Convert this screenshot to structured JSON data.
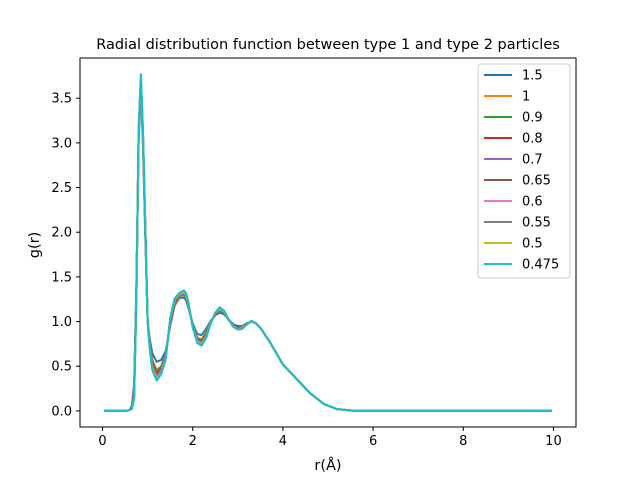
{
  "chart_data": {
    "type": "line",
    "title": "Radial distribution function between type 1 and type 2 particles",
    "xlabel": "r(Å)",
    "ylabel": "g(r)",
    "xlim": [
      -0.5,
      10.5
    ],
    "ylim": [
      -0.18,
      3.95
    ],
    "xticks": [
      0,
      2,
      4,
      6,
      8,
      10
    ],
    "xtick_labels": [
      "0",
      "2",
      "4",
      "6",
      "8",
      "10"
    ],
    "yticks": [
      0.0,
      0.5,
      1.0,
      1.5,
      2.0,
      2.5,
      3.0,
      3.5
    ],
    "ytick_labels": [
      "0.0",
      "0.5",
      "1.0",
      "1.5",
      "2.0",
      "2.5",
      "3.0",
      "3.5"
    ],
    "grid": false,
    "legend_position": "top-right",
    "x": [
      0.05,
      0.3,
      0.5,
      0.6,
      0.65,
      0.7,
      0.75,
      0.8,
      0.85,
      0.9,
      0.95,
      1.0,
      1.05,
      1.1,
      1.2,
      1.3,
      1.4,
      1.5,
      1.6,
      1.7,
      1.8,
      1.85,
      1.9,
      2.0,
      2.1,
      2.2,
      2.3,
      2.4,
      2.5,
      2.6,
      2.7,
      2.8,
      2.9,
      3.0,
      3.1,
      3.2,
      3.3,
      3.4,
      3.5,
      3.7,
      4.0,
      4.3,
      4.6,
      4.9,
      5.2,
      5.6,
      6.0,
      7.0,
      8.0,
      9.0,
      9.95
    ],
    "series": [
      {
        "name": "1.5",
        "color": "#1f77b4",
        "values": [
          0,
          0,
          0,
          0.01,
          0.06,
          0.3,
          1.4,
          3.0,
          3.62,
          2.9,
          1.9,
          1.0,
          0.8,
          0.65,
          0.55,
          0.57,
          0.67,
          0.95,
          1.18,
          1.26,
          1.27,
          1.24,
          1.16,
          0.98,
          0.86,
          0.85,
          0.92,
          1.01,
          1.07,
          1.1,
          1.08,
          1.02,
          0.97,
          0.95,
          0.95,
          0.98,
          1.0,
          0.98,
          0.93,
          0.78,
          0.52,
          0.36,
          0.2,
          0.08,
          0.02,
          0.0,
          0,
          0,
          0,
          0,
          0
        ]
      },
      {
        "name": "1",
        "color": "#ff7f0e",
        "values": [
          0,
          0,
          0,
          0.01,
          0.05,
          0.24,
          1.35,
          3.05,
          3.66,
          2.98,
          1.97,
          1.0,
          0.75,
          0.58,
          0.46,
          0.5,
          0.64,
          0.98,
          1.2,
          1.27,
          1.3,
          1.27,
          1.18,
          0.96,
          0.82,
          0.8,
          0.88,
          1.0,
          1.08,
          1.12,
          1.09,
          1.02,
          0.96,
          0.93,
          0.94,
          0.97,
          1.0,
          0.98,
          0.93,
          0.78,
          0.52,
          0.36,
          0.2,
          0.08,
          0.02,
          0.0,
          0,
          0,
          0,
          0,
          0
        ]
      },
      {
        "name": "0.9",
        "color": "#2ca02c",
        "values": [
          0,
          0,
          0,
          0.01,
          0.05,
          0.22,
          1.33,
          3.06,
          3.67,
          2.99,
          1.98,
          1.0,
          0.74,
          0.56,
          0.44,
          0.49,
          0.63,
          0.99,
          1.21,
          1.28,
          1.31,
          1.28,
          1.19,
          0.96,
          0.81,
          0.79,
          0.87,
          1.0,
          1.08,
          1.12,
          1.09,
          1.02,
          0.96,
          0.93,
          0.93,
          0.97,
          1.0,
          0.98,
          0.93,
          0.78,
          0.52,
          0.36,
          0.2,
          0.08,
          0.02,
          0.0,
          0,
          0,
          0,
          0,
          0
        ]
      },
      {
        "name": "0.8",
        "color": "#d62728",
        "values": [
          0,
          0,
          0,
          0.01,
          0.04,
          0.2,
          1.31,
          3.08,
          3.69,
          3.0,
          1.99,
          1.0,
          0.73,
          0.54,
          0.42,
          0.47,
          0.62,
          1.0,
          1.22,
          1.29,
          1.32,
          1.29,
          1.2,
          0.95,
          0.8,
          0.78,
          0.86,
          0.99,
          1.08,
          1.13,
          1.1,
          1.02,
          0.96,
          0.93,
          0.93,
          0.97,
          1.0,
          0.98,
          0.93,
          0.78,
          0.52,
          0.36,
          0.2,
          0.08,
          0.02,
          0.0,
          0,
          0,
          0,
          0,
          0
        ]
      },
      {
        "name": "0.7",
        "color": "#9467bd",
        "values": [
          0,
          0,
          0,
          0.01,
          0.04,
          0.18,
          1.28,
          3.1,
          3.71,
          3.02,
          2.0,
          1.0,
          0.72,
          0.52,
          0.4,
          0.46,
          0.61,
          1.01,
          1.23,
          1.29,
          1.32,
          1.29,
          1.2,
          0.95,
          0.79,
          0.77,
          0.85,
          0.99,
          1.09,
          1.13,
          1.1,
          1.02,
          0.95,
          0.92,
          0.93,
          0.97,
          1.0,
          0.98,
          0.93,
          0.78,
          0.52,
          0.36,
          0.2,
          0.08,
          0.02,
          0.0,
          0,
          0,
          0,
          0,
          0
        ]
      },
      {
        "name": "0.65",
        "color": "#8c564b",
        "values": [
          0,
          0,
          0,
          0.01,
          0.03,
          0.17,
          1.27,
          3.11,
          3.72,
          3.03,
          2.01,
          1.0,
          0.71,
          0.51,
          0.39,
          0.45,
          0.6,
          1.01,
          1.23,
          1.3,
          1.33,
          1.3,
          1.21,
          0.95,
          0.78,
          0.76,
          0.85,
          0.99,
          1.09,
          1.14,
          1.1,
          1.02,
          0.95,
          0.92,
          0.93,
          0.97,
          1.0,
          0.98,
          0.93,
          0.78,
          0.52,
          0.36,
          0.2,
          0.08,
          0.02,
          0.0,
          0,
          0,
          0,
          0,
          0
        ]
      },
      {
        "name": "0.6",
        "color": "#e377c2",
        "values": [
          0,
          0,
          0,
          0.01,
          0.03,
          0.16,
          1.26,
          3.12,
          3.73,
          3.04,
          2.02,
          1.0,
          0.7,
          0.5,
          0.38,
          0.44,
          0.6,
          1.02,
          1.24,
          1.3,
          1.33,
          1.3,
          1.21,
          0.94,
          0.78,
          0.76,
          0.84,
          0.99,
          1.09,
          1.14,
          1.11,
          1.02,
          0.95,
          0.92,
          0.93,
          0.97,
          1.0,
          0.98,
          0.93,
          0.78,
          0.52,
          0.36,
          0.2,
          0.08,
          0.02,
          0.0,
          0,
          0,
          0,
          0,
          0
        ]
      },
      {
        "name": "0.55",
        "color": "#7f7f7f",
        "values": [
          0,
          0,
          0,
          0.01,
          0.03,
          0.15,
          1.25,
          3.13,
          3.74,
          3.05,
          2.03,
          1.0,
          0.7,
          0.49,
          0.37,
          0.43,
          0.59,
          1.02,
          1.24,
          1.31,
          1.34,
          1.31,
          1.22,
          0.94,
          0.77,
          0.75,
          0.84,
          0.99,
          1.09,
          1.15,
          1.11,
          1.02,
          0.95,
          0.92,
          0.92,
          0.97,
          1.0,
          0.98,
          0.93,
          0.78,
          0.52,
          0.36,
          0.2,
          0.08,
          0.02,
          0.0,
          0,
          0,
          0,
          0,
          0
        ]
      },
      {
        "name": "0.5",
        "color": "#bcbd22",
        "values": [
          0,
          0,
          0,
          0.01,
          0.02,
          0.14,
          1.24,
          3.14,
          3.75,
          3.06,
          2.04,
          1.0,
          0.69,
          0.48,
          0.36,
          0.42,
          0.58,
          1.03,
          1.25,
          1.31,
          1.34,
          1.31,
          1.22,
          0.94,
          0.77,
          0.74,
          0.83,
          0.99,
          1.1,
          1.15,
          1.11,
          1.02,
          0.95,
          0.91,
          0.92,
          0.97,
          1.0,
          0.98,
          0.93,
          0.78,
          0.52,
          0.36,
          0.2,
          0.08,
          0.02,
          0.0,
          0,
          0,
          0,
          0,
          0
        ]
      },
      {
        "name": "0.475",
        "color": "#17becf",
        "values": [
          0,
          0,
          0,
          0.01,
          0.02,
          0.13,
          1.23,
          3.15,
          3.77,
          3.08,
          2.05,
          1.0,
          0.68,
          0.46,
          0.34,
          0.41,
          0.57,
          1.04,
          1.26,
          1.32,
          1.35,
          1.32,
          1.23,
          0.93,
          0.76,
          0.73,
          0.82,
          0.98,
          1.1,
          1.16,
          1.12,
          1.02,
          0.94,
          0.91,
          0.92,
          0.97,
          1.01,
          0.98,
          0.93,
          0.78,
          0.52,
          0.36,
          0.2,
          0.08,
          0.02,
          0.0,
          0,
          0,
          0,
          0,
          0
        ]
      }
    ]
  }
}
